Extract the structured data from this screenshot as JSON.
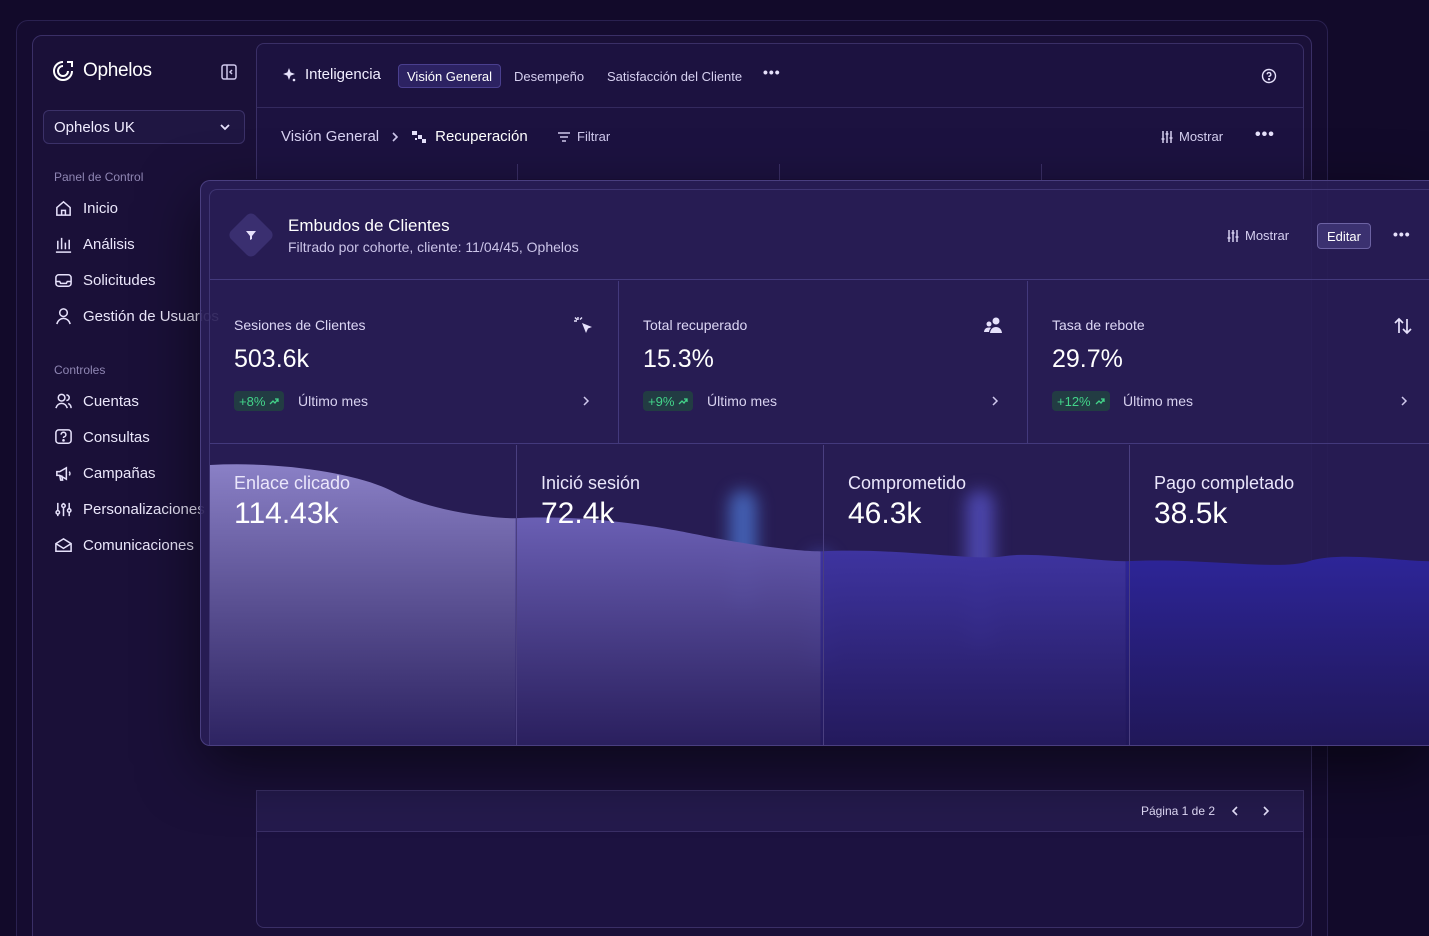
{
  "brand": {
    "name": "Ophelos"
  },
  "org_select": {
    "value": "Ophelos UK"
  },
  "sidebar": {
    "sections": [
      {
        "label": "Panel de Control",
        "items": [
          {
            "label": "Inicio",
            "icon": "home-icon"
          },
          {
            "label": "Análisis",
            "icon": "bar-chart-icon"
          },
          {
            "label": "Solicitudes",
            "icon": "inbox-icon"
          },
          {
            "label": "Gestión de Usuarios",
            "icon": "user-icon"
          }
        ]
      },
      {
        "label": "Controles",
        "items": [
          {
            "label": "Cuentas",
            "icon": "users-icon"
          },
          {
            "label": "Consultas",
            "icon": "question-icon"
          },
          {
            "label": "Campañas",
            "icon": "megaphone-icon"
          },
          {
            "label": "Personalizaciones",
            "icon": "sliders-icon"
          },
          {
            "label": "Comunicaciones",
            "icon": "mail-icon"
          }
        ]
      }
    ]
  },
  "topbar": {
    "title": "Inteligencia",
    "tabs": [
      "Visión General",
      "Desempeño",
      "Satisfacción del Cliente"
    ],
    "active_tab": "Visión General"
  },
  "breadcrumb": {
    "parent": "Visión General",
    "current": "Recuperación"
  },
  "toolbar": {
    "filter_label": "Filtrar",
    "show_label": "Mostrar"
  },
  "card": {
    "title": "Embudos de Clientes",
    "subtitle": "Filtrado por cohorte, cliente: 11/04/45, Ophelos",
    "show_label": "Mostrar",
    "edit_label": "Editar"
  },
  "metrics": [
    {
      "label": "Sesiones de Clientes",
      "value": "503.6k",
      "delta": "+8%",
      "period": "Último mes",
      "icon": "cursor-click-icon"
    },
    {
      "label": "Total recuperado",
      "value": "15.3%",
      "delta": "+9%",
      "period": "Último mes",
      "icon": "user-group-icon"
    },
    {
      "label": "Tasa de rebote",
      "value": "29.7%",
      "delta": "+12%",
      "period": "Último mes",
      "icon": "arrows-up-down-icon"
    }
  ],
  "funnel": {
    "stages": [
      {
        "label": "Enlace clicado",
        "value": "114.43k",
        "count": 114430
      },
      {
        "label": "Inició sesión",
        "value": "72.4k",
        "count": 72400
      },
      {
        "label": "Comprometido",
        "value": "46.3k",
        "count": 46300
      },
      {
        "label": "Pago completado",
        "value": "38.5k",
        "count": 38500
      }
    ]
  },
  "pagination": {
    "label": "Página 1 de 2"
  },
  "colors": {
    "accent": "#4a3f8f",
    "positive": "#43d48a",
    "background": "#120a2a"
  }
}
